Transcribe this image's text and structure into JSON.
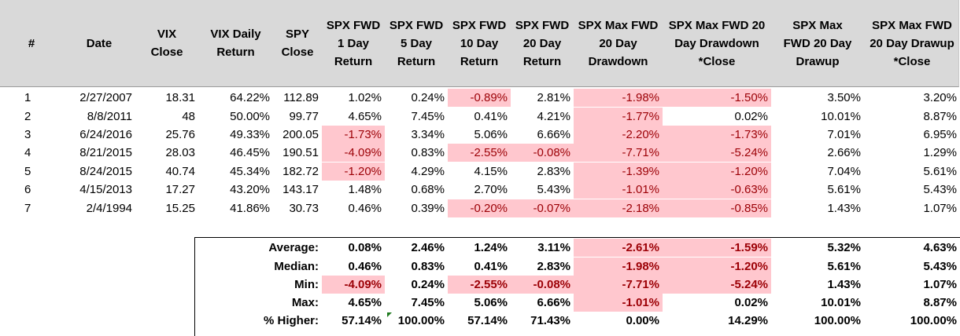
{
  "headers": [
    "#",
    "Date",
    "VIX\nClose",
    "VIX Daily\nReturn",
    "SPY\nClose",
    "SPX FWD\n1 Day\nReturn",
    "SPX FWD\n5 Day\nReturn",
    "SPX FWD\n10 Day\nReturn",
    "SPX FWD\n20 Day\nReturn",
    "SPX Max FWD\n20 Day\nDrawdown",
    "SPX Max FWD 20\nDay Drawdown\n*Close",
    "SPX Max\nFWD 20 Day\nDrawup",
    "SPX Max FWD\n20 Day Drawup\n*Close"
  ],
  "rows": [
    [
      "1",
      "2/27/2007",
      "18.31",
      "64.22%",
      "112.89",
      "1.02%",
      "0.24%",
      "-0.89%",
      "2.81%",
      "-1.98%",
      "-1.50%",
      "3.50%",
      "3.20%"
    ],
    [
      "2",
      "8/8/2011",
      "48",
      "50.00%",
      "99.77",
      "4.65%",
      "7.45%",
      "0.41%",
      "4.21%",
      "-1.77%",
      "0.02%",
      "10.01%",
      "8.87%"
    ],
    [
      "3",
      "6/24/2016",
      "25.76",
      "49.33%",
      "200.05",
      "-1.73%",
      "3.34%",
      "5.06%",
      "6.66%",
      "-2.20%",
      "-1.73%",
      "7.01%",
      "6.95%"
    ],
    [
      "4",
      "8/21/2015",
      "28.03",
      "46.45%",
      "190.51",
      "-4.09%",
      "0.83%",
      "-2.55%",
      "-0.08%",
      "-7.71%",
      "-5.24%",
      "2.66%",
      "1.29%"
    ],
    [
      "5",
      "8/24/2015",
      "40.74",
      "45.34%",
      "182.72",
      "-1.20%",
      "4.29%",
      "4.15%",
      "2.83%",
      "-1.39%",
      "-1.20%",
      "7.04%",
      "5.61%"
    ],
    [
      "6",
      "4/15/2013",
      "17.27",
      "43.20%",
      "143.17",
      "1.48%",
      "0.68%",
      "2.70%",
      "5.43%",
      "-1.01%",
      "-0.63%",
      "5.61%",
      "5.43%"
    ],
    [
      "7",
      "2/4/1994",
      "15.25",
      "41.86%",
      "30.73",
      "0.46%",
      "0.39%",
      "-0.20%",
      "-0.07%",
      "-2.18%",
      "-0.85%",
      "1.43%",
      "1.07%"
    ]
  ],
  "stats": [
    {
      "label": "Average:",
      "values": [
        "0.08%",
        "2.46%",
        "1.24%",
        "3.11%",
        "-2.61%",
        "-1.59%",
        "5.32%",
        "4.63%"
      ]
    },
    {
      "label": "Median:",
      "values": [
        "0.46%",
        "0.83%",
        "0.41%",
        "2.83%",
        "-1.98%",
        "-1.20%",
        "5.61%",
        "5.43%"
      ]
    },
    {
      "label": "Min:",
      "values": [
        "-4.09%",
        "0.24%",
        "-2.55%",
        "-0.08%",
        "-7.71%",
        "-5.24%",
        "1.43%",
        "1.07%"
      ]
    },
    {
      "label": "Max:",
      "values": [
        "4.65%",
        "7.45%",
        "5.06%",
        "6.66%",
        "-1.01%",
        "0.02%",
        "10.01%",
        "8.87%"
      ]
    },
    {
      "label": "% Higher:",
      "values": [
        "57.14%",
        "100.00%",
        "57.14%",
        "71.43%",
        "0.00%",
        "14.29%",
        "100.00%",
        "100.00%"
      ]
    }
  ],
  "colors": {
    "header_bg": "#d9d9d9",
    "highlight_bg": "#ffc7ce",
    "highlight_text": "#9c0006"
  }
}
